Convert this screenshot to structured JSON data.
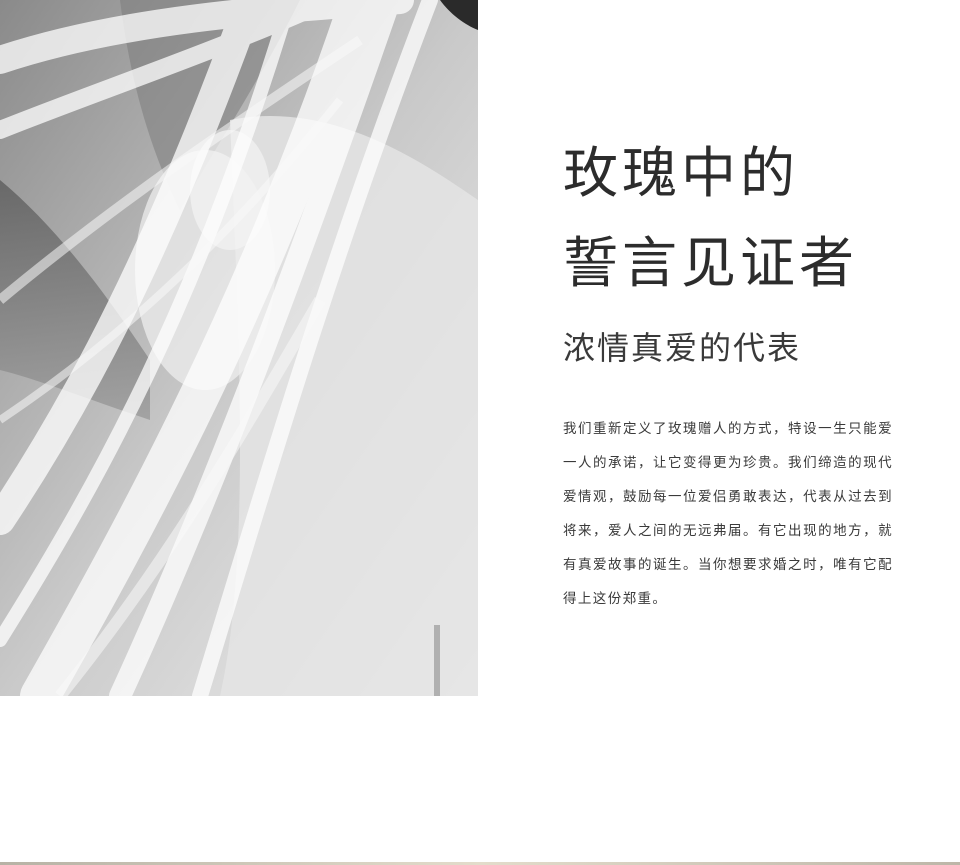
{
  "photo": {
    "icon": "bride-veil-photo",
    "tone": "black-and-white"
  },
  "content": {
    "title_line1": "玫瑰中的",
    "title_line2": "誓言见证者",
    "subtitle": "浓情真爱的代表",
    "body": "我们重新定义了玫瑰赠人的方式，特设一生只能爱一人的承诺，让它变得更为珍贵。我们缔造的现代爱情观，鼓励每一位爱侣勇敢表达，代表从过去到将来，爱人之间的无远弗届。有它出现的地方，就有真爱故事的诞生。当你想要求婚之时，唯有它配得上这份郑重。"
  },
  "colors": {
    "text": "#333333",
    "background": "#ffffff"
  }
}
